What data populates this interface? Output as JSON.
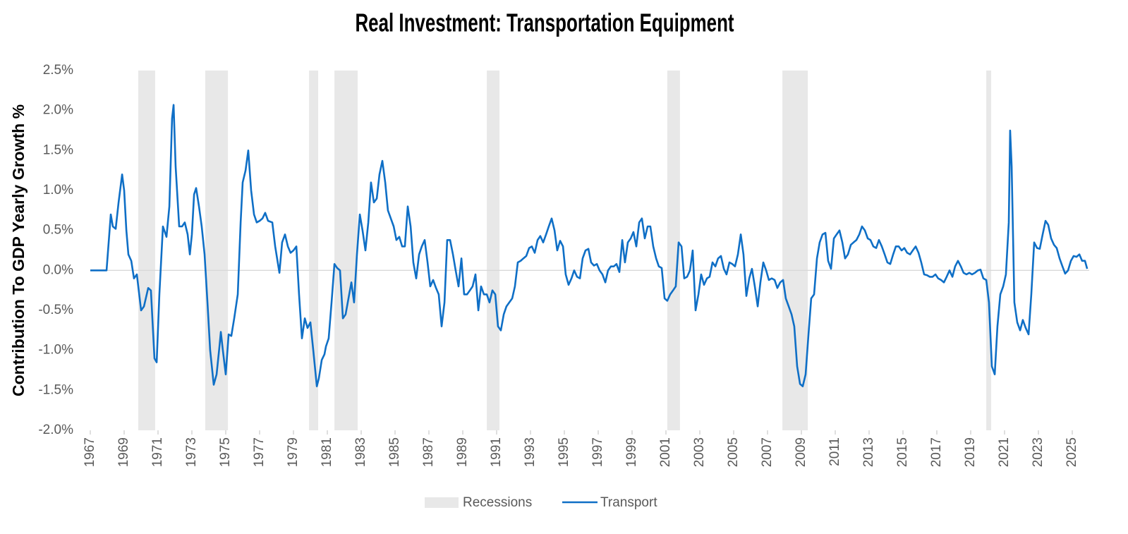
{
  "chart_data": {
    "type": "line",
    "title": "Real Investment: Transportation Equipment",
    "y_label": "Contribution To GDP Yearly Growth %",
    "xlim": [
      1967,
      2026
    ],
    "xticks": [
      1967,
      1969,
      1971,
      1973,
      1975,
      1977,
      1979,
      1981,
      1983,
      1985,
      1987,
      1989,
      1991,
      1993,
      1995,
      1997,
      1999,
      2001,
      2003,
      2005,
      2007,
      2009,
      2011,
      2013,
      2015,
      2017,
      2019,
      2021,
      2023,
      2025
    ],
    "ylim": [
      -2.0,
      2.5
    ],
    "yticks": [
      {
        "value": 2.5,
        "label": "2.5%"
      },
      {
        "value": 2.0,
        "label": "2.0%"
      },
      {
        "value": 1.5,
        "label": "1.5%"
      },
      {
        "value": 1.0,
        "label": "1.0%"
      },
      {
        "value": 0.5,
        "label": "0.5%"
      },
      {
        "value": 0.0,
        "label": "0.0%"
      },
      {
        "value": -0.5,
        "label": "-0.5%"
      },
      {
        "value": -1.0,
        "label": "-1.0%"
      },
      {
        "value": -1.5,
        "label": "-1.5%"
      },
      {
        "value": -2.0,
        "label": "-2.0%"
      }
    ],
    "grid": false,
    "legend": "bottom",
    "recessions": {
      "name": "Recessions",
      "color": "#e8e8e8",
      "ranges": [
        [
          1969.83,
          1970.83
        ],
        [
          1973.79,
          1975.13
        ],
        [
          1979.92,
          1980.46
        ],
        [
          1981.42,
          1982.79
        ],
        [
          1990.42,
          1991.17
        ],
        [
          2001.08,
          2001.83
        ],
        [
          2007.88,
          2009.38
        ],
        [
          2019.92,
          2020.21
        ]
      ]
    },
    "x": [
      1967.0,
      1967.96,
      1968.21,
      1968.33,
      1968.5,
      1968.67,
      1968.88,
      1969.0,
      1969.13,
      1969.25,
      1969.42,
      1969.58,
      1969.75,
      1970.0,
      1970.17,
      1970.42,
      1970.58,
      1970.79,
      1970.92,
      1971.08,
      1971.29,
      1971.5,
      1971.67,
      1971.83,
      1971.92,
      1972.04,
      1972.25,
      1972.42,
      1972.58,
      1972.75,
      1972.88,
      1973.0,
      1973.13,
      1973.25,
      1973.42,
      1973.58,
      1973.75,
      1973.92,
      1974.08,
      1974.29,
      1974.46,
      1974.63,
      1974.71,
      1974.83,
      1975.0,
      1975.17,
      1975.33,
      1975.5,
      1975.71,
      1975.88,
      1976.0,
      1976.17,
      1976.33,
      1976.5,
      1976.67,
      1976.83,
      1977.0,
      1977.17,
      1977.33,
      1977.5,
      1977.75,
      1977.92,
      1978.17,
      1978.33,
      1978.5,
      1978.67,
      1978.83,
      1979.0,
      1979.17,
      1979.33,
      1979.5,
      1979.67,
      1979.83,
      1980.0,
      1980.17,
      1980.38,
      1980.5,
      1980.67,
      1980.83,
      1980.92,
      1981.08,
      1981.25,
      1981.42,
      1981.58,
      1981.75,
      1981.92,
      1982.08,
      1982.25,
      1982.42,
      1982.58,
      1982.75,
      1982.92,
      1983.08,
      1983.25,
      1983.42,
      1983.58,
      1983.75,
      1983.92,
      1984.08,
      1984.25,
      1984.42,
      1984.58,
      1984.75,
      1984.92,
      1985.08,
      1985.25,
      1985.42,
      1985.58,
      1985.75,
      1985.92,
      1986.08,
      1986.25,
      1986.42,
      1986.58,
      1986.75,
      1986.92,
      1987.08,
      1987.25,
      1987.42,
      1987.58,
      1987.75,
      1987.92,
      1988.08,
      1988.25,
      1988.42,
      1988.58,
      1988.75,
      1988.92,
      1989.08,
      1989.25,
      1989.42,
      1989.58,
      1989.75,
      1989.92,
      1990.08,
      1990.25,
      1990.42,
      1990.58,
      1990.75,
      1990.92,
      1991.08,
      1991.25,
      1991.42,
      1991.58,
      1991.75,
      1991.92,
      1992.08,
      1992.25,
      1992.42,
      1992.58,
      1992.75,
      1992.92,
      1993.08,
      1993.25,
      1993.42,
      1993.58,
      1993.75,
      1993.92,
      1994.08,
      1994.25,
      1994.42,
      1994.58,
      1994.75,
      1994.92,
      1995.08,
      1995.25,
      1995.42,
      1995.58,
      1995.75,
      1995.92,
      1996.08,
      1996.25,
      1996.42,
      1996.58,
      1996.75,
      1996.92,
      1997.08,
      1997.25,
      1997.42,
      1997.58,
      1997.75,
      1997.92,
      1998.08,
      1998.25,
      1998.42,
      1998.58,
      1998.75,
      1998.92,
      1999.08,
      1999.25,
      1999.42,
      1999.58,
      1999.75,
      1999.92,
      2000.08,
      2000.25,
      2000.42,
      2000.58,
      2000.75,
      2000.92,
      2001.08,
      2001.25,
      2001.42,
      2001.58,
      2001.75,
      2001.92,
      2002.08,
      2002.25,
      2002.42,
      2002.58,
      2002.75,
      2002.92,
      2003.08,
      2003.25,
      2003.42,
      2003.58,
      2003.75,
      2003.92,
      2004.08,
      2004.25,
      2004.42,
      2004.58,
      2004.75,
      2004.92,
      2005.08,
      2005.25,
      2005.42,
      2005.58,
      2005.75,
      2005.92,
      2006.08,
      2006.25,
      2006.42,
      2006.58,
      2006.75,
      2006.92,
      2007.08,
      2007.25,
      2007.42,
      2007.58,
      2007.75,
      2007.92,
      2008.08,
      2008.25,
      2008.42,
      2008.58,
      2008.75,
      2008.92,
      2009.08,
      2009.25,
      2009.42,
      2009.58,
      2009.75,
      2009.92,
      2010.08,
      2010.25,
      2010.42,
      2010.58,
      2010.75,
      2010.92,
      2011.08,
      2011.25,
      2011.42,
      2011.58,
      2011.75,
      2011.92,
      2012.08,
      2012.25,
      2012.42,
      2012.58,
      2012.75,
      2012.92,
      2013.08,
      2013.25,
      2013.42,
      2013.58,
      2013.75,
      2013.92,
      2014.08,
      2014.25,
      2014.42,
      2014.58,
      2014.75,
      2014.92,
      2015.08,
      2015.25,
      2015.42,
      2015.58,
      2015.75,
      2015.92,
      2016.08,
      2016.25,
      2016.42,
      2016.58,
      2016.75,
      2016.92,
      2017.08,
      2017.25,
      2017.42,
      2017.58,
      2017.75,
      2017.92,
      2018.08,
      2018.25,
      2018.42,
      2018.58,
      2018.75,
      2018.92,
      2019.08,
      2019.25,
      2019.42,
      2019.58,
      2019.75,
      2019.92,
      2020.08,
      2020.25,
      2020.42,
      2020.58,
      2020.75,
      2020.92,
      2021.08,
      2021.25,
      2021.33,
      2021.42,
      2021.58,
      2021.75,
      2021.92,
      2022.08,
      2022.25,
      2022.42,
      2022.58,
      2022.75,
      2022.92,
      2023.08,
      2023.25,
      2023.42,
      2023.58,
      2023.75,
      2023.92,
      2024.08,
      2024.25,
      2024.42,
      2024.58,
      2024.75,
      2024.92,
      2025.08,
      2025.25,
      2025.42,
      2025.58,
      2025.75,
      2025.88
    ],
    "series": [
      {
        "name": "Transport",
        "color": "#0f6fc6",
        "values": [
          0,
          0,
          0.7,
          0.55,
          0.52,
          0.85,
          1.2,
          1.0,
          0.5,
          0.2,
          0.12,
          -0.1,
          -0.05,
          -0.5,
          -0.45,
          -0.22,
          -0.25,
          -1.1,
          -1.15,
          -0.3,
          0.55,
          0.42,
          0.8,
          1.9,
          2.07,
          1.3,
          0.55,
          0.55,
          0.6,
          0.45,
          0.2,
          0.45,
          0.95,
          1.03,
          0.8,
          0.55,
          0.2,
          -0.4,
          -1.0,
          -1.43,
          -1.3,
          -0.95,
          -0.77,
          -1.0,
          -1.3,
          -0.8,
          -0.82,
          -0.6,
          -0.3,
          0.6,
          1.1,
          1.25,
          1.5,
          1.0,
          0.7,
          0.6,
          0.62,
          0.65,
          0.72,
          0.62,
          0.6,
          0.3,
          -0.03,
          0.35,
          0.45,
          0.3,
          0.22,
          0.25,
          0.3,
          -0.3,
          -0.85,
          -0.6,
          -0.72,
          -0.65,
          -1.0,
          -1.45,
          -1.35,
          -1.12,
          -1.05,
          -0.95,
          -0.85,
          -0.4,
          0.08,
          0.03,
          0.0,
          -0.6,
          -0.55,
          -0.35,
          -0.15,
          -0.4,
          0.2,
          0.7,
          0.5,
          0.25,
          0.6,
          1.1,
          0.85,
          0.9,
          1.2,
          1.37,
          1.1,
          0.75,
          0.65,
          0.55,
          0.38,
          0.42,
          0.3,
          0.3,
          0.8,
          0.55,
          0.1,
          -0.1,
          0.2,
          0.3,
          0.38,
          0.1,
          -0.2,
          -0.12,
          -0.22,
          -0.3,
          -0.7,
          -0.4,
          0.38,
          0.38,
          0.2,
          0.0,
          -0.2,
          0.15,
          -0.3,
          -0.3,
          -0.25,
          -0.2,
          -0.05,
          -0.5,
          -0.2,
          -0.3,
          -0.3,
          -0.4,
          -0.25,
          -0.3,
          -0.7,
          -0.75,
          -0.55,
          -0.45,
          -0.4,
          -0.35,
          -0.2,
          0.1,
          0.12,
          0.15,
          0.18,
          0.28,
          0.3,
          0.22,
          0.38,
          0.43,
          0.35,
          0.45,
          0.55,
          0.65,
          0.5,
          0.25,
          0.37,
          0.3,
          -0.05,
          -0.18,
          -0.1,
          0.0,
          -0.08,
          -0.1,
          0.15,
          0.25,
          0.27,
          0.1,
          0.06,
          0.08,
          0.0,
          -0.05,
          -0.15,
          0.0,
          0.05,
          0.05,
          0.08,
          -0.02,
          0.38,
          0.1,
          0.35,
          0.4,
          0.48,
          0.3,
          0.6,
          0.65,
          0.4,
          0.55,
          0.55,
          0.3,
          0.15,
          0.05,
          0.03,
          -0.35,
          -0.38,
          -0.3,
          -0.25,
          -0.2,
          0.35,
          0.3,
          -0.1,
          -0.08,
          0.0,
          0.25,
          -0.5,
          -0.3,
          -0.05,
          -0.18,
          -0.1,
          -0.08,
          0.1,
          0.05,
          0.15,
          0.18,
          0.02,
          -0.05,
          0.1,
          0.08,
          0.05,
          0.2,
          0.45,
          0.2,
          -0.32,
          -0.1,
          0.02,
          -0.2,
          -0.45,
          -0.15,
          0.1,
          0.0,
          -0.12,
          -0.1,
          -0.12,
          -0.22,
          -0.15,
          -0.12,
          -0.35,
          -0.45,
          -0.55,
          -0.7,
          -1.2,
          -1.42,
          -1.45,
          -1.3,
          -0.8,
          -0.35,
          -0.3,
          0.15,
          0.35,
          0.45,
          0.47,
          0.12,
          0.02,
          0.4,
          0.45,
          0.5,
          0.35,
          0.15,
          0.2,
          0.32,
          0.35,
          0.38,
          0.45,
          0.55,
          0.5,
          0.4,
          0.38,
          0.3,
          0.28,
          0.38,
          0.3,
          0.2,
          0.1,
          0.08,
          0.2,
          0.3,
          0.3,
          0.25,
          0.28,
          0.22,
          0.2,
          0.25,
          0.3,
          0.22,
          0.1,
          -0.05,
          -0.06,
          -0.08,
          -0.08,
          -0.05,
          -0.1,
          -0.12,
          -0.15,
          -0.08,
          0.0,
          -0.08,
          0.05,
          0.12,
          0.05,
          -0.03,
          -0.05,
          -0.03,
          -0.05,
          -0.03,
          0.0,
          0.01,
          -0.1,
          -0.12,
          -0.4,
          -1.2,
          -1.3,
          -0.7,
          -0.3,
          -0.2,
          -0.05,
          0.6,
          1.75,
          1.3,
          -0.4,
          -0.65,
          -0.75,
          -0.62,
          -0.72,
          -0.8,
          -0.3,
          0.35,
          0.28,
          0.27,
          0.45,
          0.62,
          0.57,
          0.4,
          0.32,
          0.28,
          0.15,
          0.05,
          -0.04,
          0.0,
          0.12,
          0.18,
          0.17,
          0.2,
          0.12,
          0.12,
          0.02
        ]
      }
    ]
  }
}
